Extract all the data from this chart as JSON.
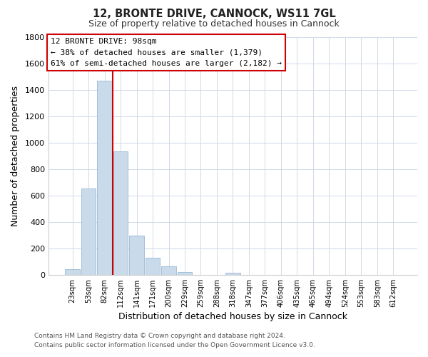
{
  "title": "12, BRONTE DRIVE, CANNOCK, WS11 7GL",
  "subtitle": "Size of property relative to detached houses in Cannock",
  "xlabel": "Distribution of detached houses by size in Cannock",
  "ylabel": "Number of detached properties",
  "bar_labels": [
    "23sqm",
    "53sqm",
    "82sqm",
    "112sqm",
    "141sqm",
    "171sqm",
    "200sqm",
    "229sqm",
    "259sqm",
    "288sqm",
    "318sqm",
    "347sqm",
    "377sqm",
    "406sqm",
    "435sqm",
    "465sqm",
    "494sqm",
    "524sqm",
    "553sqm",
    "583sqm",
    "612sqm"
  ],
  "bar_values": [
    40,
    650,
    1470,
    935,
    295,
    130,
    65,
    22,
    0,
    0,
    13,
    0,
    0,
    0,
    0,
    0,
    0,
    0,
    0,
    0,
    0
  ],
  "bar_color": "#c9daea",
  "bar_edge_color": "#9ab8d4",
  "vline_x": 2.5,
  "vline_color": "#cc0000",
  "ylim": [
    0,
    1800
  ],
  "yticks": [
    0,
    200,
    400,
    600,
    800,
    1000,
    1200,
    1400,
    1600,
    1800
  ],
  "annotation_title": "12 BRONTE DRIVE: 98sqm",
  "annotation_line1": "← 38% of detached houses are smaller (1,379)",
  "annotation_line2": "61% of semi-detached houses are larger (2,182) →",
  "annotation_box_color": "#ffffff",
  "annotation_box_edge": "#cc0000",
  "footer_line1": "Contains HM Land Registry data © Crown copyright and database right 2024.",
  "footer_line2": "Contains public sector information licensed under the Open Government Licence v3.0.",
  "grid_color": "#d0d9e8",
  "background_color": "#ffffff"
}
